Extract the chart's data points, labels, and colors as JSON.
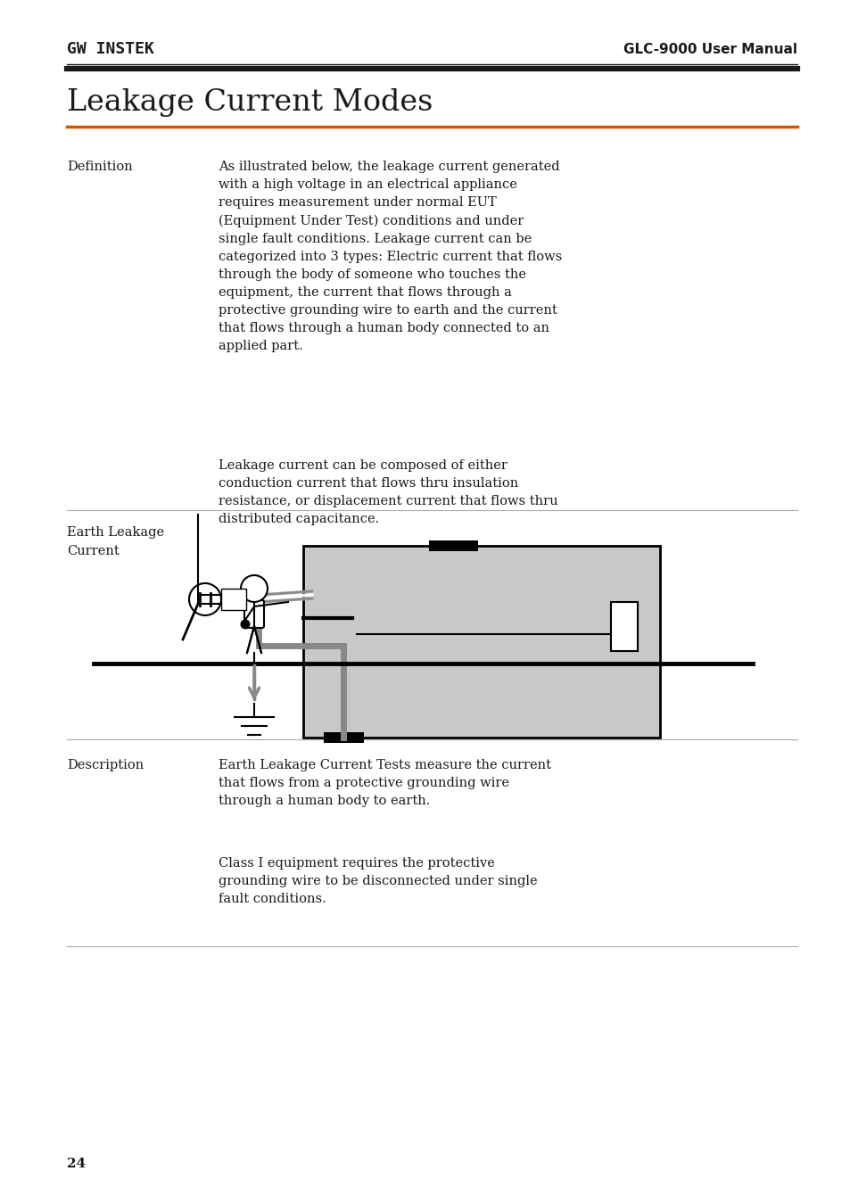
{
  "page_width": 9.54,
  "page_height": 13.5,
  "bg_color": "#ffffff",
  "header_logo_text": "GW INSTEK",
  "header_right_text": "GLC-9000 User Manual",
  "title": "Leakage Current Modes",
  "title_underline_color": "#d45500",
  "def_label": "Definition",
  "def_text1": "As illustrated below, the leakage current generated\nwith a high voltage in an electrical appliance\nrequires measurement under normal EUT\n(Equipment Under Test) conditions and under\nsingle fault conditions. Leakage current can be\ncategorized into 3 types: Electric current that flows\nthrough the body of someone who touches the\nequipment, the current that flows through a\nprotective grounding wire to earth and the current\nthat flows through a human body connected to an\napplied part.",
  "def_text2": "Leakage current can be composed of either\nconduction current that flows thru insulation\nresistance, or displacement current that flows thru\ndistributed capacitance.",
  "earth_label": "Earth Leakage\nCurrent",
  "desc_label": "Description",
  "desc_text1": "Earth Leakage Current Tests measure the current\nthat flows from a protective grounding wire\nthrough a human body to earth.",
  "desc_text2": "Class I equipment requires the protective\ngrounding wire to be disconnected under single\nfault conditions.",
  "page_number": "24",
  "orange_color": "#d45500",
  "gray_fill": "#c8c8c8",
  "dark_color": "#1a1a1a",
  "gray_wire": "#888888"
}
